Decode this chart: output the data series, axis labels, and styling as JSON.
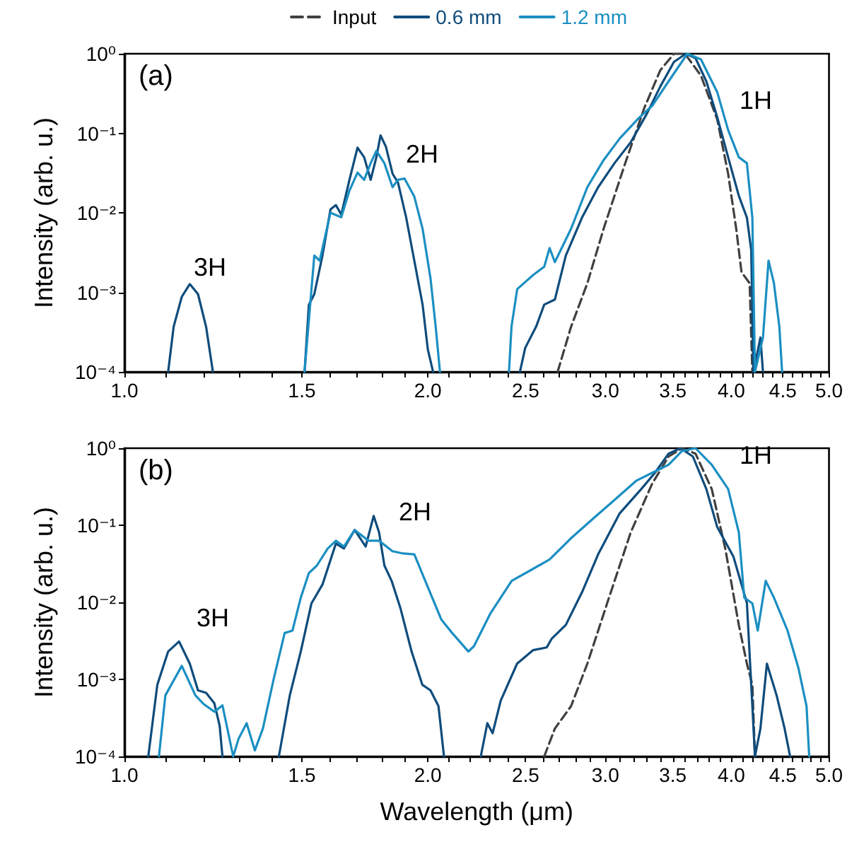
{
  "chart_data": [
    {
      "type": "line",
      "ylabel": "Intensity (arb. u.)",
      "log": "xy",
      "legend": "top",
      "grid": false,
      "xlim": [
        1,
        5
      ],
      "ylim": [
        0.0001,
        1
      ],
      "xticks": [
        {
          "value": 1,
          "label": "1.0"
        },
        {
          "value": 1.1,
          "label": null
        },
        {
          "value": 1.2,
          "label": null
        },
        {
          "value": 1.3,
          "label": null
        },
        {
          "value": 1.4,
          "label": null
        },
        {
          "value": 1.5,
          "label": "1.5"
        },
        {
          "value": 1.6,
          "label": null
        },
        {
          "value": 1.7,
          "label": null
        },
        {
          "value": 1.8,
          "label": null
        },
        {
          "value": 1.9,
          "label": null
        },
        {
          "value": 2,
          "label": "2.0"
        },
        {
          "value": 2.1,
          "label": null
        },
        {
          "value": 2.2,
          "label": null
        },
        {
          "value": 2.3,
          "label": null
        },
        {
          "value": 2.4,
          "label": null
        },
        {
          "value": 2.5,
          "label": "2.5"
        },
        {
          "value": 2.6,
          "label": null
        },
        {
          "value": 2.7,
          "label": null
        },
        {
          "value": 2.8,
          "label": null
        },
        {
          "value": 2.9,
          "label": null
        },
        {
          "value": 3,
          "label": "3.0"
        },
        {
          "value": 3.1,
          "label": null
        },
        {
          "value": 3.2,
          "label": null
        },
        {
          "value": 3.3,
          "label": null
        },
        {
          "value": 3.4,
          "label": null
        },
        {
          "value": 3.5,
          "label": "3.5"
        },
        {
          "value": 3.6,
          "label": null
        },
        {
          "value": 3.7,
          "label": null
        },
        {
          "value": 3.8,
          "label": null
        },
        {
          "value": 3.9,
          "label": null
        },
        {
          "value": 4,
          "label": "4.0"
        },
        {
          "value": 4.1,
          "label": null
        },
        {
          "value": 4.2,
          "label": null
        },
        {
          "value": 4.3,
          "label": null
        },
        {
          "value": 4.4,
          "label": null
        },
        {
          "value": 4.5,
          "label": "4.5"
        },
        {
          "value": 4.6,
          "label": null
        },
        {
          "value": 4.7,
          "label": null
        },
        {
          "value": 4.8,
          "label": null
        },
        {
          "value": 4.9,
          "label": null
        },
        {
          "value": 5,
          "label": "5.0"
        }
      ],
      "yticks": [
        {
          "value": 0.0001,
          "label": "10⁻⁴"
        },
        {
          "value": 0.001,
          "label": "10⁻³"
        },
        {
          "value": 0.01,
          "label": "10⁻²"
        },
        {
          "value": 0.1,
          "label": "10⁻¹"
        },
        {
          "value": 1,
          "label": "10⁰"
        }
      ],
      "annotations": [
        "(a)",
        "3H",
        "2H",
        "1H"
      ],
      "series": [
        {
          "name": "Input",
          "color": "#404040",
          "line_style": "dashed",
          "x": [
            2.69,
            2.774,
            2.879,
            2.988,
            3.139,
            3.278,
            3.401,
            3.509,
            3.598,
            3.732,
            3.873,
            3.971,
            4.045,
            4.094,
            4.171,
            4.197
          ],
          "values": [
            0.0001,
            0.00037,
            0.0013,
            0.0063,
            0.042,
            0.206,
            0.62,
            1.0,
            1.0,
            0.53,
            0.15,
            0.031,
            0.0063,
            0.0018,
            0.0013,
            0.0001
          ]
        },
        {
          "name": "0.6 mm",
          "color": "#0f4c7c",
          "x": [
            1.105,
            1.119,
            1.14,
            1.161,
            1.183,
            1.205,
            1.224,
            1.3,
            1.509,
            1.524,
            1.543,
            1.572,
            1.601,
            1.621,
            1.641,
            1.672,
            1.703,
            1.729,
            1.755,
            1.778,
            1.795,
            1.817,
            1.845,
            1.868,
            1.903,
            1.939,
            1.976,
            2.0,
            2.024,
            2.3,
            2.468,
            2.498,
            2.561,
            2.609,
            2.673,
            2.741,
            2.844,
            2.951,
            3.063,
            3.179,
            3.298,
            3.401,
            3.509,
            3.606,
            3.686,
            3.778,
            3.873,
            3.971,
            4.069,
            4.145,
            4.186,
            4.207,
            4.275,
            4.3
          ],
          "values": [
            0.0001,
            0.00037,
            0.00088,
            0.00127,
            0.00095,
            0.00037,
            0.0001,
            null,
            0.0001,
            0.0007,
            0.00095,
            0.0029,
            0.011,
            0.0125,
            0.0095,
            0.026,
            0.066,
            0.05,
            0.026,
            0.05,
            0.094,
            0.068,
            0.031,
            0.024,
            0.0088,
            0.0025,
            0.0007,
            0.00019,
            0.0001,
            null,
            0.0001,
            0.0002,
            0.00037,
            0.0007,
            0.00081,
            0.0029,
            0.0087,
            0.021,
            0.042,
            0.077,
            0.176,
            0.387,
            0.79,
            1.0,
            0.88,
            0.45,
            0.16,
            0.05,
            0.0164,
            0.0087,
            0.0034,
            0.0001,
            0.00027,
            0.0001
          ]
        },
        {
          "name": "1.2 mm",
          "color": "#1b8fc2",
          "x": [
            1.509,
            1.543,
            1.562,
            1.601,
            1.641,
            1.672,
            1.703,
            1.729,
            1.755,
            1.778,
            1.811,
            1.845,
            1.868,
            1.896,
            1.939,
            1.976,
            2.012,
            2.036,
            2.056,
            2.2,
            2.407,
            2.421,
            2.453,
            2.544,
            2.609,
            2.641,
            2.673,
            2.774,
            2.879,
            2.988,
            3.1,
            3.237,
            3.339,
            3.466,
            3.618,
            3.732,
            3.873,
            3.971,
            4.069,
            4.145,
            4.197,
            4.222,
            4.3,
            4.355,
            4.409,
            4.464,
            4.492
          ],
          "values": [
            0.0001,
            0.0029,
            0.0025,
            0.01,
            0.0088,
            0.019,
            0.032,
            0.026,
            0.042,
            0.06,
            0.042,
            0.021,
            0.026,
            0.027,
            0.016,
            0.0063,
            0.0015,
            0.00037,
            0.0001,
            null,
            0.0001,
            0.00037,
            0.0011,
            0.00165,
            0.0021,
            0.0036,
            0.0024,
            0.0063,
            0.021,
            0.046,
            0.086,
            0.155,
            0.222,
            0.45,
            1.0,
            0.85,
            0.33,
            0.11,
            0.05,
            0.042,
            0.0087,
            0.0001,
            0.00027,
            0.0025,
            0.0013,
            0.00037,
            0.0001
          ]
        }
      ]
    },
    {
      "type": "line",
      "xlabel": "Wavelength (μm)",
      "ylabel": "Intensity (arb. u.)",
      "log": "xy",
      "grid": false,
      "xlim": [
        1,
        5
      ],
      "ylim": [
        0.0001,
        1
      ],
      "xticks": [
        {
          "value": 1,
          "label": "1.0"
        },
        {
          "value": 1.1,
          "label": null
        },
        {
          "value": 1.2,
          "label": null
        },
        {
          "value": 1.3,
          "label": null
        },
        {
          "value": 1.4,
          "label": null
        },
        {
          "value": 1.5,
          "label": "1.5"
        },
        {
          "value": 1.6,
          "label": null
        },
        {
          "value": 1.7,
          "label": null
        },
        {
          "value": 1.8,
          "label": null
        },
        {
          "value": 1.9,
          "label": null
        },
        {
          "value": 2,
          "label": "2.0"
        },
        {
          "value": 2.1,
          "label": null
        },
        {
          "value": 2.2,
          "label": null
        },
        {
          "value": 2.3,
          "label": null
        },
        {
          "value": 2.4,
          "label": null
        },
        {
          "value": 2.5,
          "label": "2.5"
        },
        {
          "value": 2.6,
          "label": null
        },
        {
          "value": 2.7,
          "label": null
        },
        {
          "value": 2.8,
          "label": null
        },
        {
          "value": 2.9,
          "label": null
        },
        {
          "value": 3,
          "label": "3.0"
        },
        {
          "value": 3.1,
          "label": null
        },
        {
          "value": 3.2,
          "label": null
        },
        {
          "value": 3.3,
          "label": null
        },
        {
          "value": 3.4,
          "label": null
        },
        {
          "value": 3.5,
          "label": "3.5"
        },
        {
          "value": 3.6,
          "label": null
        },
        {
          "value": 3.7,
          "label": null
        },
        {
          "value": 3.8,
          "label": null
        },
        {
          "value": 3.9,
          "label": null
        },
        {
          "value": 4,
          "label": "4.0"
        },
        {
          "value": 4.1,
          "label": null
        },
        {
          "value": 4.2,
          "label": null
        },
        {
          "value": 4.3,
          "label": null
        },
        {
          "value": 4.4,
          "label": null
        },
        {
          "value": 4.5,
          "label": "4.5"
        },
        {
          "value": 4.6,
          "label": null
        },
        {
          "value": 4.7,
          "label": null
        },
        {
          "value": 4.8,
          "label": null
        },
        {
          "value": 4.9,
          "label": null
        },
        {
          "value": 5,
          "label": "5.0"
        }
      ],
      "yticks": [
        {
          "value": 0.0001,
          "label": "10⁻⁴"
        },
        {
          "value": 0.001,
          "label": "10⁻³"
        },
        {
          "value": 0.01,
          "label": "10⁻²"
        },
        {
          "value": 0.1,
          "label": "10⁻¹"
        },
        {
          "value": 1,
          "label": "10⁰"
        }
      ],
      "annotations": [
        "(b)",
        "3H",
        "2H",
        "1H"
      ],
      "series": [
        {
          "color": "#404040",
          "line_style": "dashed",
          "x": [
            2.609,
            2.673,
            2.774,
            2.879,
            3.025,
            3.179,
            3.339,
            3.466,
            3.574,
            3.686,
            3.825,
            3.945,
            4.069,
            4.145,
            4.197,
            4.222
          ],
          "values": [
            0.0001,
            0.00023,
            0.00045,
            0.0016,
            0.0115,
            0.081,
            0.348,
            0.78,
            1.0,
            0.85,
            0.296,
            0.05,
            0.0051,
            0.0016,
            0.00085,
            0.0001
          ]
        },
        {
          "color": "#0f4c7c",
          "x": [
            1.056,
            1.078,
            1.105,
            1.133,
            1.161,
            1.183,
            1.205,
            1.228,
            1.243,
            1.251,
            1.35,
            1.423,
            1.459,
            1.496,
            1.533,
            1.572,
            1.621,
            1.651,
            1.692,
            1.735,
            1.767,
            1.789,
            1.811,
            1.841,
            1.879,
            1.927,
            1.975,
            2.012,
            2.049,
            2.075,
            2.15,
            2.257,
            2.291,
            2.319,
            2.362,
            2.452,
            2.544,
            2.624,
            2.655,
            2.673,
            2.741,
            2.844,
            2.951,
            3.1,
            3.257,
            3.36,
            3.466,
            3.561,
            3.664,
            3.778,
            3.873,
            4.02,
            4.145,
            4.197,
            4.222,
            4.275,
            4.339,
            4.436,
            4.518,
            4.575
          ],
          "values": [
            0.0001,
            0.00085,
            0.0023,
            0.0031,
            0.0016,
            0.00072,
            0.00067,
            0.00049,
            0.00025,
            0.0001,
            null,
            0.0001,
            0.00062,
            0.0023,
            0.0097,
            0.017,
            0.058,
            0.05,
            0.087,
            0.053,
            0.132,
            0.081,
            0.03,
            0.019,
            0.0083,
            0.0023,
            0.00085,
            0.00072,
            0.00045,
            0.0001,
            null,
            0.0001,
            0.00027,
            0.0002,
            0.00053,
            0.0016,
            0.0024,
            0.0026,
            0.0034,
            0.0037,
            0.0051,
            0.0135,
            0.042,
            0.143,
            0.296,
            0.48,
            0.85,
            1.0,
            0.78,
            0.296,
            0.095,
            0.039,
            0.0098,
            0.00045,
            0.0001,
            0.00023,
            0.0016,
            0.00062,
            0.00023,
            0.0001
          ]
        },
        {
          "color": "#1b8fc2",
          "x": [
            1.082,
            1.098,
            1.14,
            1.176,
            1.198,
            1.228,
            1.251,
            1.282,
            1.298,
            1.322,
            1.347,
            1.372,
            1.406,
            1.442,
            1.468,
            1.496,
            1.524,
            1.552,
            1.591,
            1.621,
            1.651,
            1.692,
            1.746,
            1.789,
            1.845,
            1.891,
            1.939,
            1.988,
            2.062,
            2.114,
            2.194,
            2.222,
            2.306,
            2.422,
            2.528,
            2.641,
            2.774,
            2.915,
            3.063,
            3.218,
            3.339,
            3.466,
            3.574,
            3.686,
            3.825,
            3.971,
            4.069,
            4.12,
            4.197,
            4.249,
            4.327,
            4.409,
            4.548,
            4.663,
            4.75,
            4.779
          ],
          "values": [
            0.0001,
            0.00062,
            0.0015,
            0.00062,
            0.00048,
            0.00038,
            0.00046,
            0.0001,
            0.00017,
            0.00027,
            0.00012,
            0.00023,
            0.001,
            0.004,
            0.0043,
            0.0115,
            0.024,
            0.03,
            0.05,
            0.063,
            0.053,
            0.087,
            0.063,
            0.063,
            0.046,
            0.043,
            0.042,
            0.019,
            0.006,
            0.004,
            0.0023,
            0.0027,
            0.0071,
            0.019,
            0.026,
            0.036,
            0.068,
            0.121,
            0.213,
            0.377,
            0.48,
            0.61,
            0.92,
            1.0,
            0.61,
            0.296,
            0.081,
            0.0115,
            0.0097,
            0.0043,
            0.019,
            0.0115,
            0.0043,
            0.0014,
            0.00045,
            0.0001
          ]
        }
      ]
    }
  ]
}
